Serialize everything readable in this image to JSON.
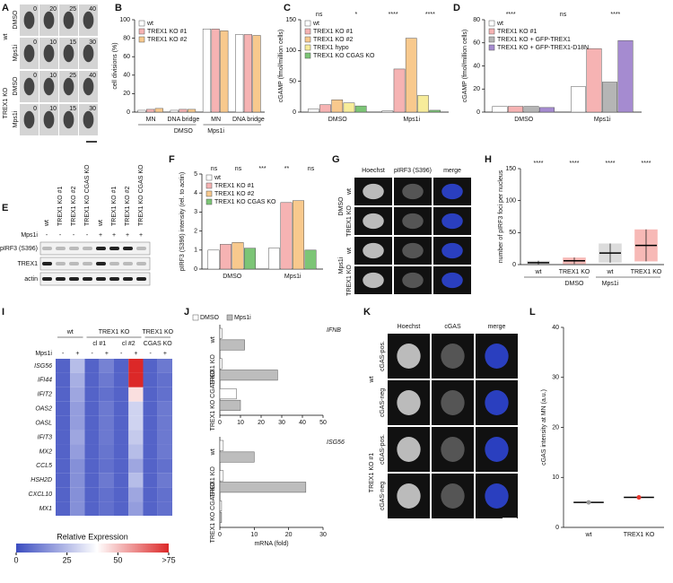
{
  "panel_letters": [
    "A",
    "B",
    "C",
    "D",
    "E",
    "F",
    "G",
    "H",
    "I",
    "J",
    "K",
    "L"
  ],
  "panel_a": {
    "genotypes": [
      "wt",
      "TREX1 KO"
    ],
    "treatments": [
      "DMSO",
      "Mps1i",
      "DMSO",
      "Mps1i"
    ],
    "times": [
      [
        "0",
        "20",
        "25",
        "40"
      ],
      [
        "0",
        "10",
        "15",
        "30"
      ],
      [
        "0",
        "10",
        "25",
        "40"
      ],
      [
        "0",
        "10",
        "15",
        "30"
      ]
    ]
  },
  "panel_e": {
    "treatment_label": "Mps1i",
    "lanes": [
      "wt",
      "TREX1 KO #1",
      "TREX1 KO #2",
      "TREX1 KO CGAS KO",
      "wt",
      "TREX1 KO #1",
      "TREX1 KO #2",
      "TREX1 KO CGAS KO"
    ],
    "treatment": [
      "-",
      "-",
      "-",
      "-",
      "+",
      "+",
      "+",
      "+"
    ],
    "rows": [
      "pIRF3 (S396)",
      "TREX1",
      "actin"
    ]
  },
  "panel_g": {
    "columns": [
      "Hoechst",
      "pIRF3 (S396)",
      "merge"
    ],
    "rows": [
      "wt",
      "TREX1 KO",
      "wt",
      "TREX1 KO"
    ],
    "treatments": [
      "DMSO",
      "Mps1i"
    ]
  },
  "panel_k": {
    "columns": [
      "Hoechst",
      "cGAS",
      "merge"
    ],
    "rows": [
      "cGAS-pos.",
      "cGAS-neg",
      "cGAS-pos.",
      "cGAS-neg"
    ],
    "genotypes": [
      "wt",
      "TREX1 KO #1"
    ]
  },
  "chart_data": [
    {
      "type": "bar",
      "ylabel": "cell divisions (%)",
      "categories": [
        "MN",
        "DNA bridge",
        "MN",
        "DNA bridge"
      ],
      "groups": [
        "DMSO",
        "Mps1i"
      ],
      "ylim": [
        0,
        100
      ],
      "yticks": [
        0,
        20,
        40,
        60,
        80,
        100
      ],
      "series": [
        {
          "name": "wt",
          "color": "#ffffff",
          "values": [
            2,
            2,
            90,
            84
          ]
        },
        {
          "name": "TREX1 KO #1",
          "color": "#f6b3b3",
          "values": [
            3,
            3,
            90,
            84
          ]
        },
        {
          "name": "TREX1 KO #2",
          "color": "#f8c98d",
          "values": [
            4,
            3,
            88,
            83
          ]
        }
      ]
    },
    {
      "type": "bar",
      "ylabel": "cGAMP (fmol/million cells)",
      "categories": [
        "DMSO",
        "Mps1i"
      ],
      "ylim": [
        0,
        150
      ],
      "yticks": [
        0,
        50,
        100,
        150
      ],
      "annotations": [
        "ns",
        "*",
        "****",
        "****"
      ],
      "series": [
        {
          "name": "wt",
          "color": "#ffffff",
          "values": [
            5,
            2
          ]
        },
        {
          "name": "TREX1 KO #1",
          "color": "#f6b3b3",
          "values": [
            12,
            70
          ]
        },
        {
          "name": "TREX1 KO #2",
          "color": "#f8c98d",
          "values": [
            20,
            120
          ]
        },
        {
          "name": "TREX1 hypo",
          "color": "#f7ec9a",
          "values": [
            15,
            27
          ]
        },
        {
          "name": "TREX1 KO CGAS KO",
          "color": "#7cc576",
          "values": [
            10,
            3
          ]
        }
      ]
    },
    {
      "type": "bar",
      "ylabel": "cGAMP (fmol/million cells)",
      "categories": [
        "DMSO",
        "Mps1i"
      ],
      "ylim": [
        0,
        80
      ],
      "yticks": [
        0,
        20,
        40,
        60,
        80
      ],
      "annotations": [
        "****",
        "ns",
        "****"
      ],
      "series": [
        {
          "name": "wt",
          "color": "#ffffff",
          "values": [
            5,
            22
          ]
        },
        {
          "name": "TREX1 KO #1",
          "color": "#f6b3b3",
          "values": [
            5,
            55
          ]
        },
        {
          "name": "TREX1 KO + GFP-TREX1",
          "color": "#b5b5b5",
          "values": [
            5,
            26
          ]
        },
        {
          "name": "TREX1 KO + GFP-TREX1-D18N",
          "color": "#a58bd0",
          "values": [
            4,
            62
          ]
        }
      ]
    },
    {
      "type": "bar",
      "ylabel": "pIRF3 (S396) intensity (rel. to actin)",
      "categories": [
        "DMSO",
        "Mps1i"
      ],
      "ylim": [
        0,
        5
      ],
      "yticks": [
        0,
        1,
        2,
        3,
        4,
        5
      ],
      "annotations": [
        "ns",
        "ns",
        "***",
        "**",
        "ns"
      ],
      "series": [
        {
          "name": "wt",
          "color": "#ffffff",
          "values": [
            1,
            1.1
          ]
        },
        {
          "name": "TREX1 KO #1",
          "color": "#f6b3b3",
          "values": [
            1.3,
            3.5
          ]
        },
        {
          "name": "TREX1 KO #2",
          "color": "#f8c98d",
          "values": [
            1.4,
            3.6
          ]
        },
        {
          "name": "TREX1 KO CGAS KO",
          "color": "#7cc576",
          "values": [
            1.1,
            1.0
          ]
        }
      ]
    },
    {
      "type": "strip",
      "ylabel": "number of pIRF3 foci per nucleus",
      "categories": [
        "wt",
        "TREX1 KO",
        "wt",
        "TREX1 KO"
      ],
      "groups": [
        "DMSO",
        "Mps1i"
      ],
      "ylim": [
        0,
        150
      ],
      "yticks": [
        0,
        50,
        100,
        150
      ],
      "annotations": [
        "****",
        "****",
        "****",
        "****"
      ],
      "values": [
        3,
        6,
        18,
        30
      ],
      "sd": [
        3,
        5,
        15,
        25
      ],
      "colors": [
        "#9a9a9a",
        "#e8362d",
        "#9a9a9a",
        "#e8362d"
      ]
    },
    {
      "type": "heatmap",
      "rows": [
        "ISG56",
        "IFI44",
        "IFIT2",
        "OAS2",
        "OASL",
        "IFIT3",
        "MX2",
        "CCL5",
        "HSH2D",
        "CXCL10",
        "MX1"
      ],
      "column_groups": [
        "wt",
        "TREX1 KO",
        "TREX1 KO"
      ],
      "subgroups": [
        "cl #1",
        "cl #2",
        "CGAS KO"
      ],
      "treatment_label": "Mps1i",
      "treatment": [
        "-",
        "+",
        "-",
        "+",
        "-",
        "+",
        "-",
        "+"
      ],
      "values": [
        [
          5,
          25,
          5,
          12,
          5,
          80,
          5,
          10
        ],
        [
          5,
          22,
          5,
          10,
          5,
          80,
          5,
          8
        ],
        [
          5,
          20,
          5,
          8,
          5,
          45,
          5,
          8
        ],
        [
          5,
          18,
          5,
          10,
          5,
          30,
          5,
          10
        ],
        [
          5,
          18,
          5,
          10,
          5,
          30,
          5,
          10
        ],
        [
          5,
          20,
          5,
          10,
          5,
          28,
          5,
          10
        ],
        [
          5,
          18,
          5,
          9,
          5,
          25,
          5,
          10
        ],
        [
          5,
          15,
          5,
          8,
          5,
          20,
          5,
          8
        ],
        [
          5,
          15,
          5,
          10,
          5,
          25,
          5,
          10
        ],
        [
          5,
          15,
          5,
          8,
          5,
          20,
          5,
          8
        ],
        [
          5,
          15,
          5,
          8,
          5,
          18,
          5,
          8
        ]
      ],
      "colorbar_label": "Relative Expression",
      "clim": [
        0,
        75
      ],
      "cticks": [
        0,
        25,
        50,
        {
          "value": 75,
          "label": ">75"
        }
      ]
    },
    {
      "type": "hbar",
      "xlabel": "mRNA (fold)",
      "categories": [
        "wt",
        "TREX1 KO",
        "TREX1 KO CGAS KO"
      ],
      "series": [
        {
          "name": "DMSO",
          "color": "#ffffff"
        },
        {
          "name": "Mps1i",
          "color": "#bdbdbd"
        }
      ],
      "panels": [
        {
          "title": "IFNB",
          "xlim": [
            0,
            50
          ],
          "xticks": [
            0,
            10,
            20,
            30,
            40,
            50
          ],
          "values": [
            [
              1,
              1,
              8
            ],
            [
              12,
              28,
              10
            ]
          ]
        },
        {
          "title": "ISG56",
          "xlim": [
            0,
            30
          ],
          "xticks": [
            0,
            10,
            20,
            30
          ],
          "values": [
            [
              1,
              1,
              0.5
            ],
            [
              10,
              25,
              0.5
            ]
          ]
        }
      ]
    },
    {
      "type": "strip",
      "ylabel": "cGAS intensity at MN (a.u.)",
      "categories": [
        "wt",
        "TREX1 KO"
      ],
      "ylim": [
        0,
        40
      ],
      "yticks": [
        0,
        10,
        20,
        30,
        40
      ],
      "values": [
        5,
        6
      ],
      "colors": [
        "#9a9a9a",
        "#e8362d"
      ]
    }
  ]
}
